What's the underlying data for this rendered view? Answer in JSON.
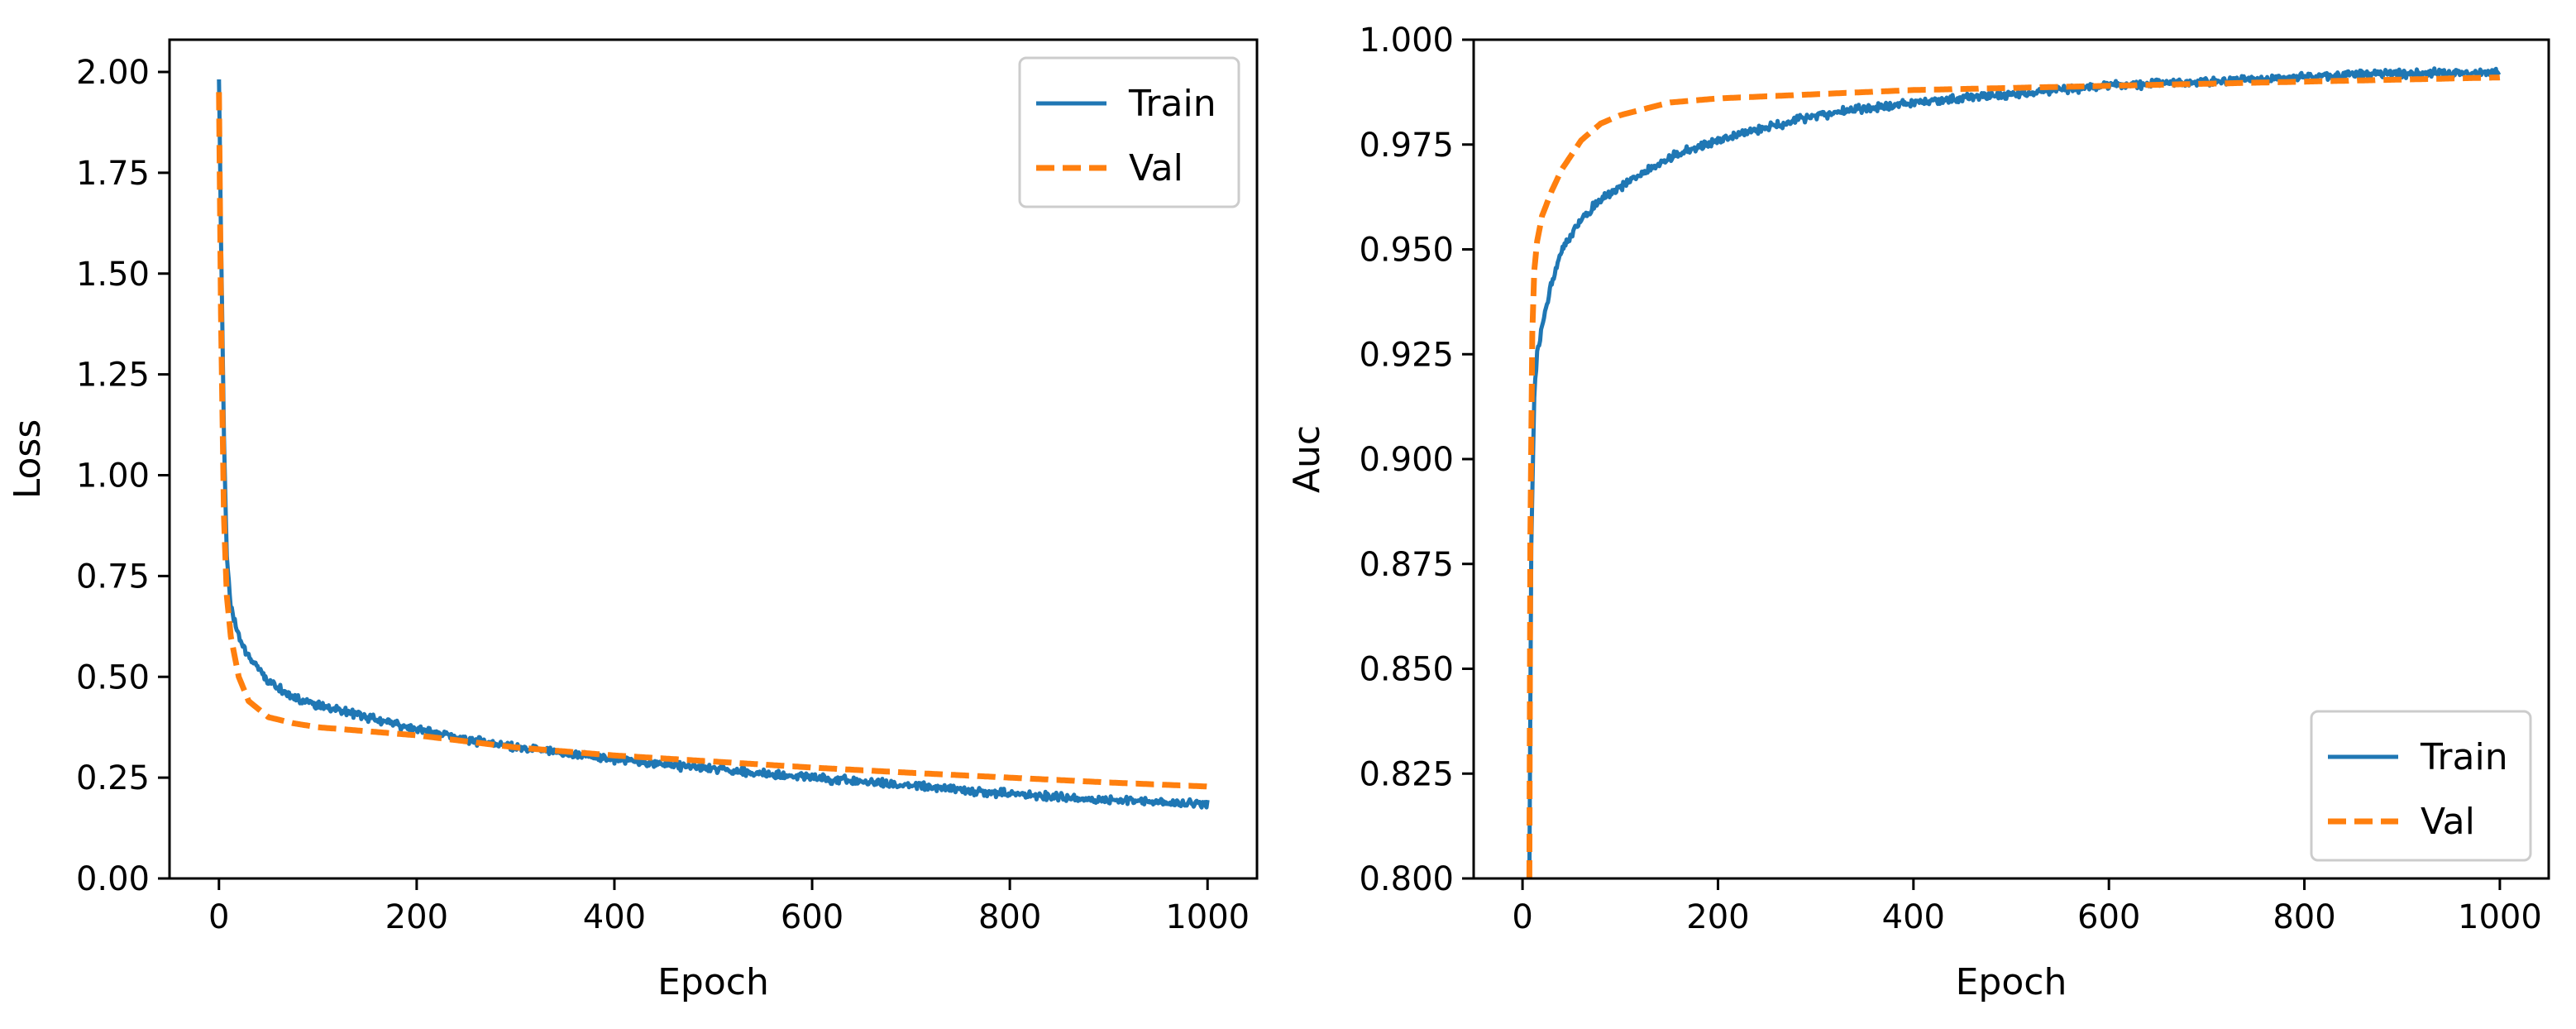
{
  "chart_data": [
    {
      "type": "line",
      "title": "",
      "xlabel": "Epoch",
      "ylabel": "Loss",
      "xlim": [
        -50,
        1050
      ],
      "ylim": [
        0.0,
        2.08
      ],
      "xticks": [
        0,
        200,
        400,
        600,
        800,
        1000
      ],
      "xtick_labels": [
        "0",
        "200",
        "400",
        "600",
        "800",
        "1000"
      ],
      "yticks": [
        0.0,
        0.25,
        0.5,
        0.75,
        1.0,
        1.25,
        1.5,
        1.75,
        2.0
      ],
      "ytick_labels": [
        "0.00",
        "0.25",
        "0.50",
        "0.75",
        "1.00",
        "1.25",
        "1.50",
        "1.75",
        "2.00"
      ],
      "legend_position": "top-right",
      "grid": false,
      "series": [
        {
          "name": "Train",
          "color": "#1f77b4",
          "style": "solid",
          "x": [
            0,
            2,
            5,
            8,
            12,
            20,
            30,
            50,
            75,
            100,
            150,
            200,
            250,
            300,
            400,
            500,
            600,
            700,
            800,
            900,
            1000
          ],
          "y": [
            1.99,
            1.6,
            1.1,
            0.8,
            0.67,
            0.6,
            0.55,
            0.49,
            0.45,
            0.43,
            0.4,
            0.37,
            0.345,
            0.325,
            0.295,
            0.27,
            0.25,
            0.23,
            0.21,
            0.195,
            0.185
          ],
          "noise": 0.012
        },
        {
          "name": "Val",
          "color": "#ff7f0e",
          "style": "dashed",
          "x": [
            0,
            2,
            5,
            8,
            12,
            20,
            30,
            50,
            75,
            100,
            150,
            200,
            300,
            400,
            500,
            600,
            700,
            800,
            900,
            1000
          ],
          "y": [
            1.95,
            1.4,
            0.9,
            0.7,
            0.6,
            0.5,
            0.44,
            0.4,
            0.385,
            0.375,
            0.365,
            0.355,
            0.325,
            0.305,
            0.29,
            0.275,
            0.262,
            0.25,
            0.238,
            0.228
          ],
          "noise": 0
        }
      ]
    },
    {
      "type": "line",
      "title": "",
      "xlabel": "Epoch",
      "ylabel": "Auc",
      "xlim": [
        -50,
        1050
      ],
      "ylim": [
        0.8,
        1.0
      ],
      "xticks": [
        0,
        200,
        400,
        600,
        800,
        1000
      ],
      "xtick_labels": [
        "0",
        "200",
        "400",
        "600",
        "800",
        "1000"
      ],
      "yticks": [
        0.8,
        0.825,
        0.85,
        0.875,
        0.9,
        0.925,
        0.95,
        0.975,
        1.0
      ],
      "ytick_labels": [
        "0.800",
        "0.825",
        "0.850",
        "0.875",
        "0.900",
        "0.925",
        "0.950",
        "0.975",
        "1.000"
      ],
      "legend_position": "bottom-right",
      "grid": false,
      "series": [
        {
          "name": "Train",
          "color": "#1f77b4",
          "style": "solid",
          "x": [
            7,
            9,
            12,
            15,
            20,
            30,
            40,
            60,
            80,
            100,
            150,
            200,
            250,
            300,
            400,
            500,
            600,
            700,
            800,
            900,
            1000
          ],
          "y": [
            0.8,
            0.88,
            0.915,
            0.925,
            0.932,
            0.942,
            0.95,
            0.957,
            0.962,
            0.965,
            0.972,
            0.976,
            0.979,
            0.982,
            0.985,
            0.987,
            0.989,
            0.99,
            0.991,
            0.992,
            0.992
          ],
          "noise": 0.0012
        },
        {
          "name": "Val",
          "color": "#ff7f0e",
          "style": "dashed",
          "x": [
            7,
            8,
            10,
            12,
            15,
            20,
            30,
            40,
            60,
            80,
            100,
            150,
            200,
            300,
            400,
            600,
            800,
            1000
          ],
          "y": [
            0.8,
            0.88,
            0.93,
            0.945,
            0.952,
            0.958,
            0.964,
            0.969,
            0.976,
            0.98,
            0.982,
            0.985,
            0.986,
            0.987,
            0.988,
            0.989,
            0.99,
            0.991
          ],
          "noise": 0
        }
      ]
    }
  ]
}
